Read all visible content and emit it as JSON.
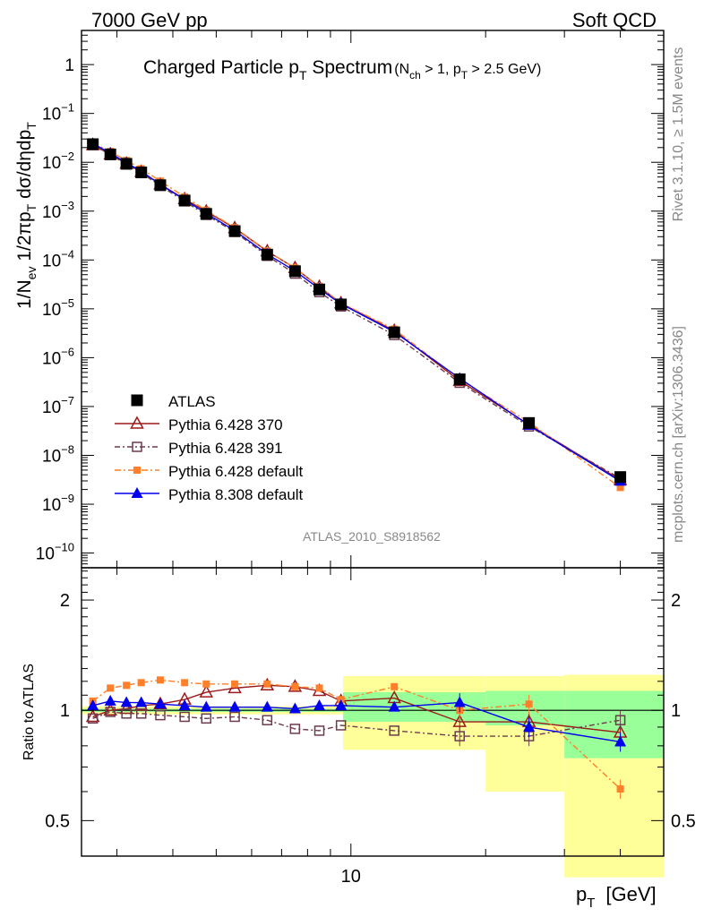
{
  "header": {
    "left": "7000 GeV pp",
    "right": "Soft QCD"
  },
  "side": {
    "rivet": "Rivet 3.1.10, ≥ 1.5M events",
    "mcplots": "mcplots.cern.ch [arXiv:1306.3436]"
  },
  "chart_data": {
    "type": "line",
    "title": {
      "main": "Charged Particle",
      "pt_p": "p",
      "pt_T": "T",
      "main2": "Spectrum",
      "cut_open": "(N",
      "cut_ch": "ch",
      "cut_mid": " > 1, p",
      "cut_T": "T",
      "cut_end": " > 2.5 GeV)"
    },
    "analysis_label": "ATLAS_2010_S8918562",
    "ylabel_top": "1/N_ev 1/2πp_T dσ/dηdp_T",
    "ylabel_bottom": "Ratio to ATLAS",
    "xlabel": "p_T  [GeV]",
    "xlabel_p": "p",
    "xlabel_T": "T",
    "xlabel_unit": "[GeV]",
    "x_scale": "log",
    "xlim": [
      2.5,
      50
    ],
    "x_ticks_labeled": [
      {
        "v": 10,
        "label": "10"
      }
    ],
    "top": {
      "y_scale": "log",
      "ylim": [
        5e-11,
        5
      ],
      "y_ticks": [
        {
          "v": 1,
          "label": "1"
        },
        {
          "v": 0.1,
          "label": "10",
          "exp": "−1"
        },
        {
          "v": 0.01,
          "label": "10",
          "exp": "−2"
        },
        {
          "v": 0.001,
          "label": "10",
          "exp": "−3"
        },
        {
          "v": 0.0001,
          "label": "10",
          "exp": "−4"
        },
        {
          "v": 1e-05,
          "label": "10",
          "exp": "−5"
        },
        {
          "v": 1e-06,
          "label": "10",
          "exp": "−6"
        },
        {
          "v": 1e-07,
          "label": "10",
          "exp": "−7"
        },
        {
          "v": 1e-08,
          "label": "10",
          "exp": "−8"
        },
        {
          "v": 1e-09,
          "label": "10",
          "exp": "−9"
        },
        {
          "v": 1e-10,
          "label": "10",
          "exp": "−10"
        }
      ]
    },
    "bottom": {
      "y_scale": "log",
      "ylim": [
        0.4,
        2.45
      ],
      "y_ticks": [
        {
          "v": 0.5,
          "label": "0.5"
        },
        {
          "v": 1,
          "label": "1"
        },
        {
          "v": 2,
          "label": "2"
        }
      ],
      "bands": [
        {
          "x0": 2.5,
          "x1": 9.6,
          "inner": [
            0.99,
            1.01
          ],
          "outer": [
            0.975,
            1.025
          ]
        },
        {
          "x0": 9.6,
          "x1": 20.0,
          "inner": [
            0.93,
            1.12
          ],
          "outer": [
            0.78,
            1.24
          ]
        },
        {
          "x0": 20.0,
          "x1": 30.0,
          "inner": [
            0.91,
            1.13
          ],
          "outer": [
            0.6,
            1.24
          ]
        },
        {
          "x0": 30.0,
          "x1": 50.0,
          "inner": [
            0.74,
            1.13
          ],
          "outer": [
            0.35,
            1.25
          ]
        }
      ]
    },
    "x": [
      2.65,
      2.9,
      3.15,
      3.4,
      3.75,
      4.25,
      4.75,
      5.5,
      6.5,
      7.5,
      8.5,
      9.5,
      12.5,
      17.5,
      25.0,
      40.0
    ],
    "series": [
      {
        "name": "ATLAS",
        "color": "#000000",
        "marker": "square-filled",
        "dash": "",
        "values": [
          0.0235,
          0.0145,
          0.0093,
          0.0062,
          0.0034,
          0.00165,
          0.00088,
          0.00039,
          0.000129,
          5.9e-05,
          2.49e-05,
          1.23e-05,
          3.3e-06,
          3.6e-07,
          4.6e-08,
          3.6e-09
        ]
      },
      {
        "name": "Pythia 6.428 370",
        "color": "#9b1a1a",
        "marker": "triangle-open",
        "dash": "",
        "ratio": [
          0.96,
          1.0,
          1.01,
          1.03,
          1.04,
          1.07,
          1.12,
          1.15,
          1.17,
          1.16,
          1.13,
          1.06,
          1.08,
          0.93,
          0.93,
          0.87
        ]
      },
      {
        "name": "Pythia 6.428 391",
        "color": "#6e3a4f",
        "marker": "square-open",
        "dash": "6,3,2,3",
        "ratio": [
          0.95,
          0.99,
          0.98,
          0.98,
          0.97,
          0.96,
          0.95,
          0.96,
          0.94,
          0.89,
          0.88,
          0.91,
          0.88,
          0.85,
          0.85,
          0.94
        ]
      },
      {
        "name": "Pythia 6.428 default",
        "color": "#ff7f2a",
        "marker": "square-filled-small",
        "dash": "7,3,2,3",
        "ratio": [
          1.06,
          1.15,
          1.17,
          1.19,
          1.21,
          1.19,
          1.18,
          1.18,
          1.18,
          1.16,
          1.15,
          1.07,
          1.16,
          1.0,
          1.04,
          0.61
        ]
      },
      {
        "name": "Pythia 8.308 default",
        "color": "#0000ee",
        "marker": "triangle-filled",
        "dash": "",
        "ratio": [
          1.03,
          1.06,
          1.05,
          1.05,
          1.04,
          1.03,
          1.02,
          1.02,
          1.02,
          1.01,
          1.03,
          1.03,
          1.02,
          1.05,
          0.9,
          0.82
        ]
      }
    ],
    "legend_position": "lower-left",
    "grid": false
  }
}
